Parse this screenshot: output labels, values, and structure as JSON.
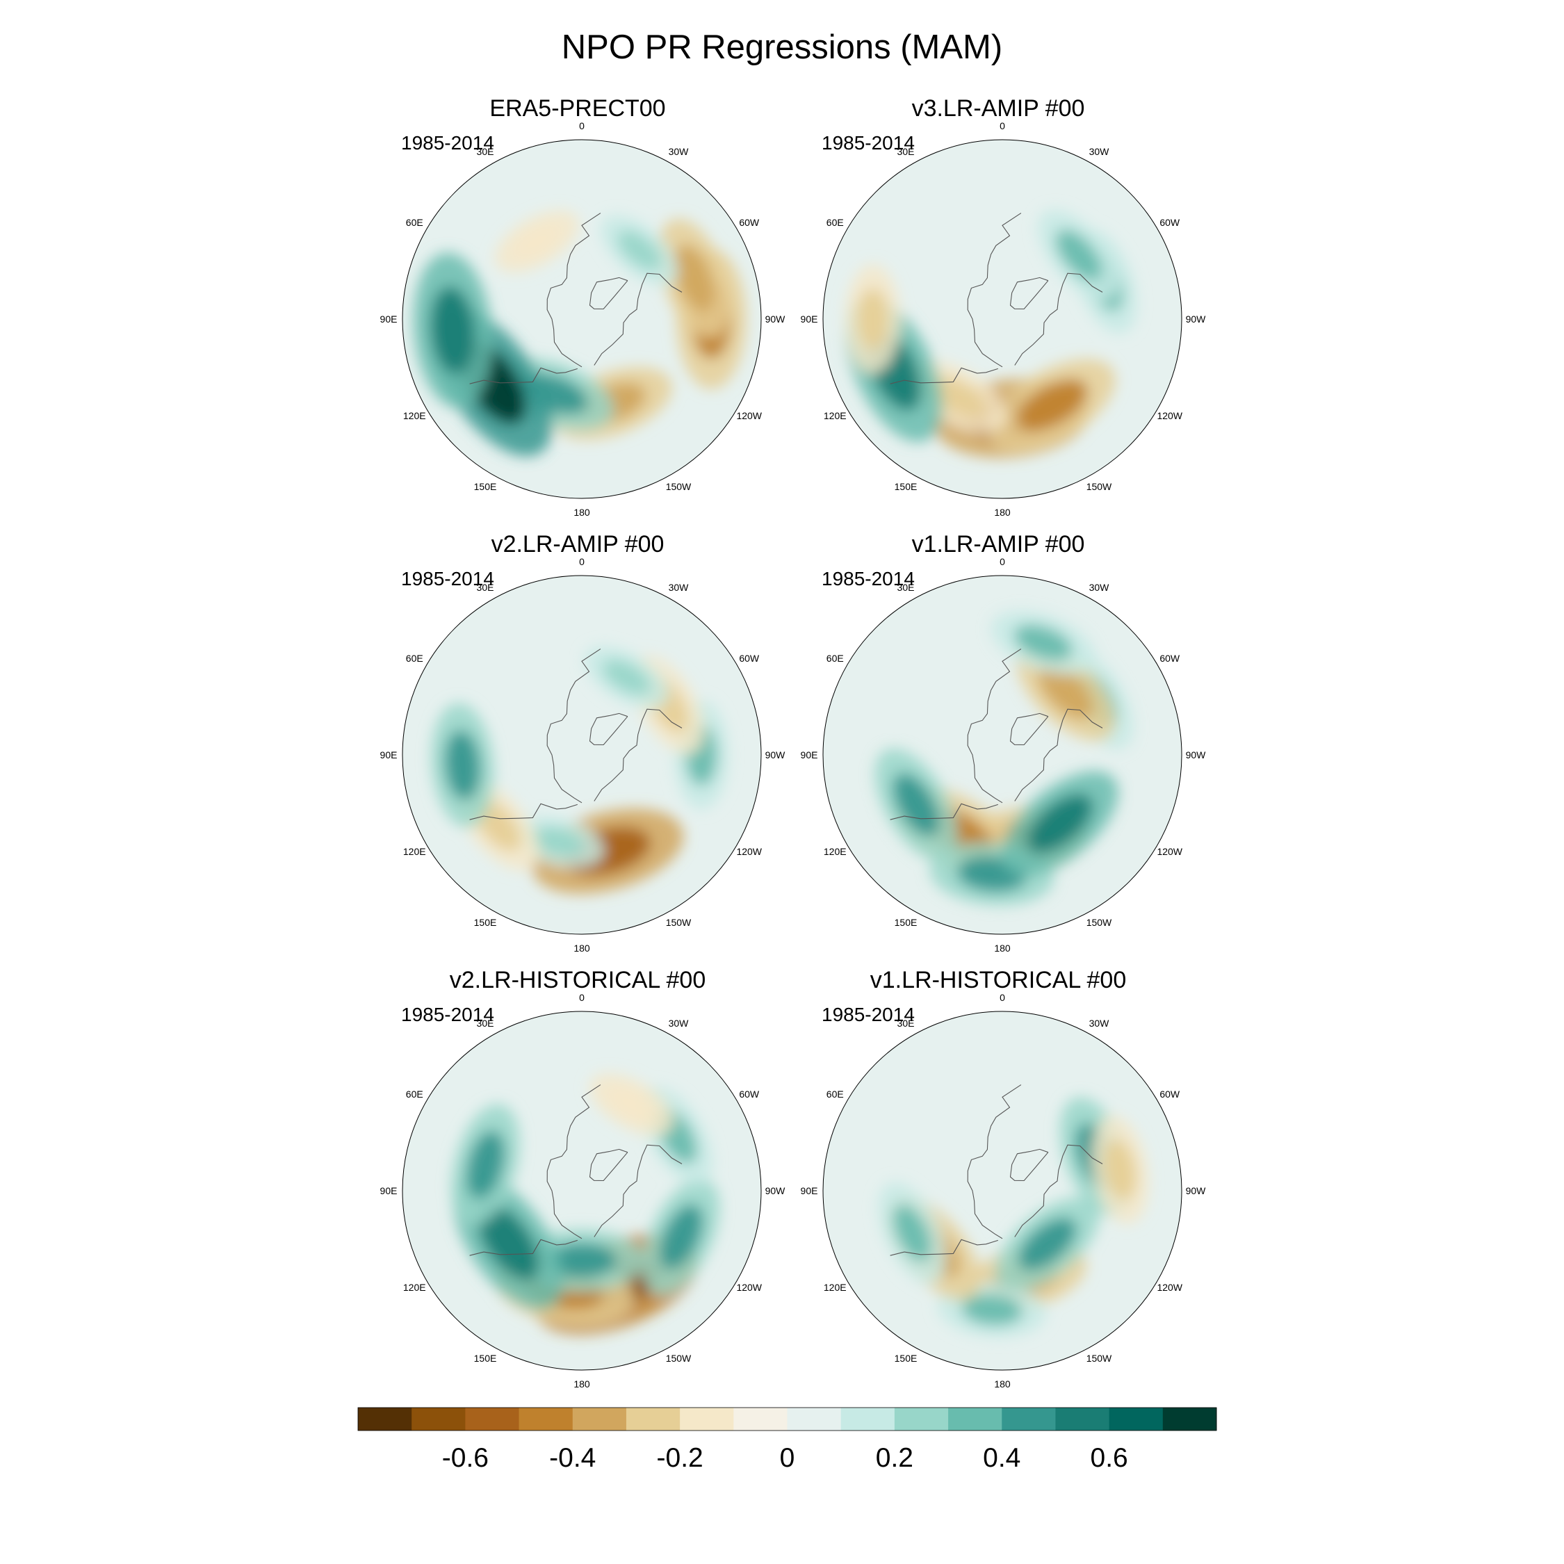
{
  "figure": {
    "title": "NPO PR Regressions (MAM)"
  },
  "panels": [
    {
      "id": "era5",
      "title": "ERA5-PRECT00",
      "period": "1985-2014"
    },
    {
      "id": "v3-amip",
      "title": "v3.LR-AMIP  #00",
      "period": "1985-2014"
    },
    {
      "id": "v2-amip",
      "title": "v2.LR-AMIP  #00",
      "period": "1985-2014"
    },
    {
      "id": "v1-amip",
      "title": "v1.LR-AMIP  #00",
      "period": "1985-2014"
    },
    {
      "id": "v2-hist",
      "title": "v2.LR-HISTORICAL  #00",
      "period": "1985-2014"
    },
    {
      "id": "v1-hist",
      "title": "v1.LR-HISTORICAL  #00",
      "period": "1985-2014"
    }
  ],
  "lon_labels": [
    "180",
    "150E",
    "120E",
    "90E",
    "60E",
    "30E",
    "0",
    "30W",
    "60W",
    "90W",
    "120W",
    "150W"
  ],
  "colorbar": {
    "colors": [
      "#543005",
      "#8c510a",
      "#a8621b",
      "#bf812d",
      "#d1a65e",
      "#e6cf96",
      "#f5e8c9",
      "#f5f1e6",
      "#e6f1ef",
      "#c7eae5",
      "#98d6c9",
      "#68bcae",
      "#35978f",
      "#1a7d74",
      "#01665e",
      "#003c30"
    ],
    "tick_labels": [
      "-0.6",
      "-0.4",
      "-0.2",
      "0",
      "0.2",
      "0.4",
      "0.6"
    ],
    "tick_values": [
      -0.6,
      -0.4,
      -0.2,
      0,
      0.2,
      0.4,
      0.6
    ],
    "range": [
      -0.8,
      0.8
    ]
  },
  "chart_data": [
    {
      "type": "heatmap",
      "projection": "north polar stereographic",
      "title": "ERA5-PRECT00",
      "subtitle": "1985-2014",
      "anomalies": [
        {
          "lon": -160,
          "lat": 45,
          "value": -0.4
        },
        {
          "lon": 160,
          "lat": 50,
          "value": 0.4
        },
        {
          "lon": 125,
          "lat": 35,
          "value": 0.7
        },
        {
          "lon": 95,
          "lat": 25,
          "value": 0.6
        },
        {
          "lon": -90,
          "lat": 25,
          "value": -0.5
        },
        {
          "lon": -70,
          "lat": 30,
          "value": -0.4
        },
        {
          "lon": -40,
          "lat": 45,
          "value": 0.2
        },
        {
          "lon": 30,
          "lat": 45,
          "value": -0.2
        }
      ]
    },
    {
      "type": "heatmap",
      "projection": "north polar stereographic",
      "title": "v3.LR-AMIP  #00",
      "subtitle": "1985-2014",
      "anomalies": [
        {
          "lon": -175,
          "lat": 40,
          "value": -0.6
        },
        {
          "lon": -150,
          "lat": 40,
          "value": -0.5
        },
        {
          "lon": 150,
          "lat": 45,
          "value": -0.3
        },
        {
          "lon": 115,
          "lat": 30,
          "value": 0.6
        },
        {
          "lon": -70,
          "lat": 35,
          "value": 0.3
        },
        {
          "lon": -50,
          "lat": 40,
          "value": 0.3
        },
        {
          "lon": 90,
          "lat": 25,
          "value": -0.3
        }
      ]
    },
    {
      "type": "heatmap",
      "projection": "north polar stereographic",
      "title": "v2.LR-AMIP  #00",
      "subtitle": "1985-2014",
      "anomalies": [
        {
          "lon": -165,
          "lat": 40,
          "value": -0.6
        },
        {
          "lon": 165,
          "lat": 45,
          "value": 0.2
        },
        {
          "lon": 130,
          "lat": 35,
          "value": -0.3
        },
        {
          "lon": 95,
          "lat": 30,
          "value": 0.4
        },
        {
          "lon": -90,
          "lat": 30,
          "value": 0.3
        },
        {
          "lon": -60,
          "lat": 40,
          "value": -0.3
        },
        {
          "lon": -30,
          "lat": 45,
          "value": 0.2
        }
      ]
    },
    {
      "type": "heatmap",
      "projection": "north polar stereographic",
      "title": "v1.LR-AMIP  #00",
      "subtitle": "1985-2014",
      "anomalies": [
        {
          "lon": -170,
          "lat": 45,
          "value": -0.5
        },
        {
          "lon": 150,
          "lat": 45,
          "value": -0.5
        },
        {
          "lon": 175,
          "lat": 30,
          "value": 0.4
        },
        {
          "lon": -140,
          "lat": 45,
          "value": 0.5
        },
        {
          "lon": -60,
          "lat": 35,
          "value": 0.3
        },
        {
          "lon": -45,
          "lat": 45,
          "value": -0.4
        },
        {
          "lon": 120,
          "lat": 40,
          "value": 0.4
        },
        {
          "lon": -20,
          "lat": 30,
          "value": 0.3
        }
      ]
    },
    {
      "type": "heatmap",
      "projection": "north polar stereographic",
      "title": "v2.LR-HISTORICAL  #00",
      "subtitle": "1985-2014",
      "anomalies": [
        {
          "lon": -160,
          "lat": 40,
          "value": -0.7
        },
        {
          "lon": 170,
          "lat": 40,
          "value": -0.5
        },
        {
          "lon": 180,
          "lat": 55,
          "value": 0.4
        },
        {
          "lon": 125,
          "lat": 45,
          "value": 0.6
        },
        {
          "lon": -115,
          "lat": 35,
          "value": 0.4
        },
        {
          "lon": 75,
          "lat": 40,
          "value": 0.4
        },
        {
          "lon": -60,
          "lat": 35,
          "value": 0.3
        },
        {
          "lon": -30,
          "lat": 40,
          "value": -0.2
        }
      ]
    },
    {
      "type": "heatmap",
      "projection": "north polar stereographic",
      "title": "v1.LR-HISTORICAL  #00",
      "subtitle": "1985-2014",
      "anomalies": [
        {
          "lon": -165,
          "lat": 45,
          "value": -0.4
        },
        {
          "lon": 175,
          "lat": 30,
          "value": 0.3
        },
        {
          "lon": -140,
          "lat": 55,
          "value": 0.4
        },
        {
          "lon": 130,
          "lat": 45,
          "value": -0.4
        },
        {
          "lon": 115,
          "lat": 40,
          "value": 0.3
        },
        {
          "lon": -70,
          "lat": 40,
          "value": 0.4
        },
        {
          "lon": -80,
          "lat": 30,
          "value": -0.3
        }
      ]
    }
  ]
}
